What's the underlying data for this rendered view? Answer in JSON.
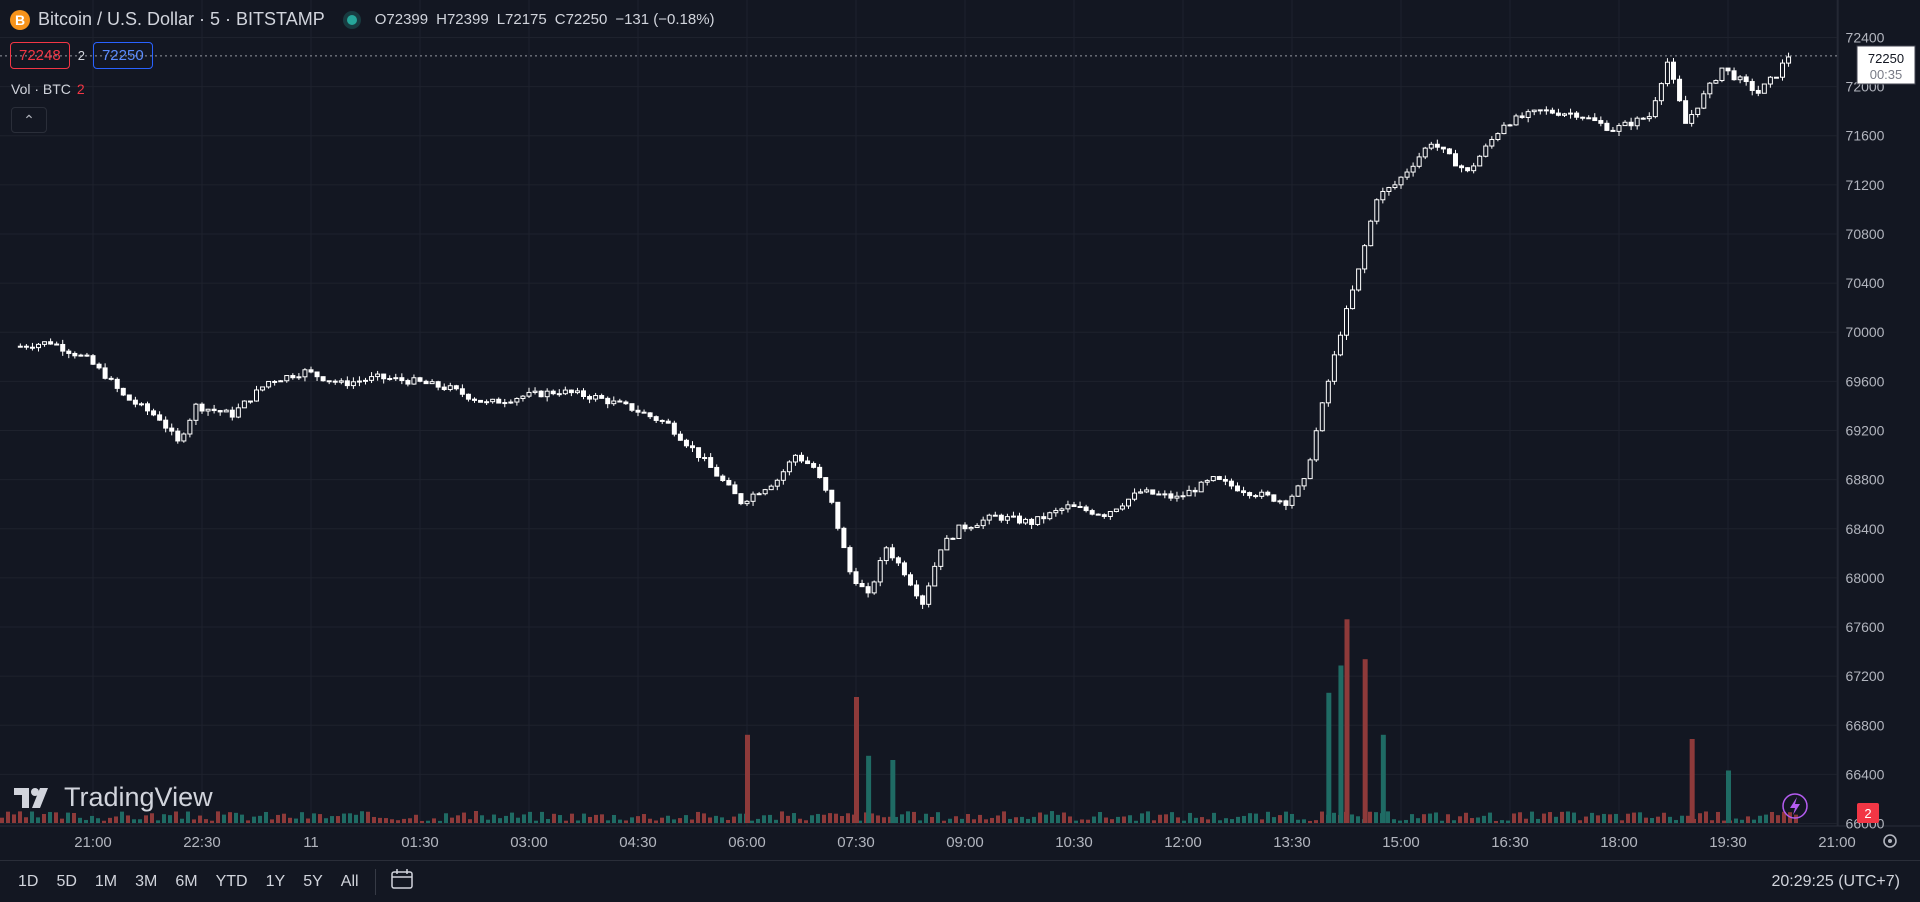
{
  "legend": {
    "coin_icon": "B",
    "title": "Bitcoin / U.S. Dollar · 5 · BITSTAMP",
    "ohlc": {
      "o_label": "O",
      "o": "72399",
      "h_label": "H",
      "h": "72399",
      "l_label": "L",
      "l": "72175",
      "c_label": "C",
      "c": "72250",
      "change": "−131 (−0.18%)"
    }
  },
  "quote": {
    "bid": "72248",
    "spread": "2",
    "ask": "72250"
  },
  "volume_label": {
    "text": "Vol · BTC",
    "value": "2"
  },
  "logo": {
    "text": "TradingView"
  },
  "price_label": {
    "price": "72250",
    "countdown": "00:35"
  },
  "volume_badge": "2",
  "toolbar": {
    "ranges": [
      "1D",
      "5D",
      "1M",
      "3M",
      "6M",
      "YTD",
      "1Y",
      "5Y",
      "All"
    ],
    "clock": "20:29:25 (UTC+7)"
  },
  "colors": {
    "background": "#131722",
    "grid": "#1e222d",
    "up": "#ffffff",
    "down": "#ffffff",
    "vol_up": "#1f6b64",
    "vol_down": "#8e3a3a",
    "bid": "#f23645",
    "ask": "#2962ff"
  },
  "chart_data": {
    "type": "candlestick",
    "symbol": "Bitcoin / U.S. Dollar",
    "interval": "5",
    "exchange": "BITSTAMP",
    "y_ticks": [
      72400,
      72000,
      71600,
      71200,
      70800,
      70400,
      70000,
      69600,
      69200,
      68800,
      68400,
      68000,
      67600,
      67200,
      66800,
      66400,
      66000
    ],
    "ylim": [
      65980,
      72420
    ],
    "x_ticks": [
      "21:00",
      "22:30",
      "11",
      "01:30",
      "03:00",
      "04:30",
      "06:00",
      "07:30",
      "09:00",
      "10:30",
      "12:00",
      "13:30",
      "15:00",
      "16:30",
      "18:00",
      "19:30",
      "21:00"
    ],
    "series": [
      {
        "t": "20:00",
        "close": 69880
      },
      {
        "t": "20:30",
        "close": 69920
      },
      {
        "t": "21:00",
        "close": 69780
      },
      {
        "t": "21:15",
        "close": 69650
      },
      {
        "t": "21:30",
        "close": 69480
      },
      {
        "t": "22:00",
        "close": 69300
      },
      {
        "t": "22:15",
        "close": 69100
      },
      {
        "t": "22:30",
        "close": 69400
      },
      {
        "t": "23:00",
        "close": 69330
      },
      {
        "t": "23:30",
        "close": 69600
      },
      {
        "t": "00:00",
        "close": 69680
      },
      {
        "t": "00:30",
        "close": 69580
      },
      {
        "t": "01:00",
        "close": 69630
      },
      {
        "t": "01:30",
        "close": 69600
      },
      {
        "t": "02:00",
        "close": 69540
      },
      {
        "t": "02:30",
        "close": 69420
      },
      {
        "t": "03:00",
        "close": 69480
      },
      {
        "t": "03:30",
        "close": 69520
      },
      {
        "t": "04:00",
        "close": 69470
      },
      {
        "t": "04:30",
        "close": 69380
      },
      {
        "t": "05:00",
        "close": 69250
      },
      {
        "t": "05:30",
        "close": 68950
      },
      {
        "t": "06:00",
        "close": 68620
      },
      {
        "t": "06:30",
        "close": 68800
      },
      {
        "t": "06:45",
        "close": 69000
      },
      {
        "t": "07:00",
        "close": 68900
      },
      {
        "t": "07:15",
        "close": 68600
      },
      {
        "t": "07:30",
        "close": 68050
      },
      {
        "t": "07:45",
        "close": 67850
      },
      {
        "t": "08:00",
        "close": 68250
      },
      {
        "t": "08:15",
        "close": 68050
      },
      {
        "t": "08:30",
        "close": 67800
      },
      {
        "t": "08:45",
        "close": 68250
      },
      {
        "t": "09:00",
        "close": 68400
      },
      {
        "t": "09:30",
        "close": 68500
      },
      {
        "t": "10:00",
        "close": 68450
      },
      {
        "t": "10:30",
        "close": 68580
      },
      {
        "t": "11:00",
        "close": 68520
      },
      {
        "t": "11:30",
        "close": 68700
      },
      {
        "t": "12:00",
        "close": 68650
      },
      {
        "t": "12:30",
        "close": 68800
      },
      {
        "t": "13:00",
        "close": 68700
      },
      {
        "t": "13:30",
        "close": 68620
      },
      {
        "t": "13:45",
        "close": 68780
      },
      {
        "t": "14:00",
        "close": 69400
      },
      {
        "t": "14:15",
        "close": 70000
      },
      {
        "t": "14:30",
        "close": 70500
      },
      {
        "t": "14:45",
        "close": 71100
      },
      {
        "t": "15:00",
        "close": 71200
      },
      {
        "t": "15:30",
        "close": 71550
      },
      {
        "t": "16:00",
        "close": 71300
      },
      {
        "t": "16:30",
        "close": 71700
      },
      {
        "t": "17:00",
        "close": 71800
      },
      {
        "t": "17:30",
        "close": 71780
      },
      {
        "t": "18:00",
        "close": 71650
      },
      {
        "t": "18:30",
        "close": 71760
      },
      {
        "t": "18:45",
        "close": 72200
      },
      {
        "t": "19:00",
        "close": 71700
      },
      {
        "t": "19:30",
        "close": 72150
      },
      {
        "t": "20:00",
        "close": 71950
      },
      {
        "t": "20:15",
        "close": 72100
      },
      {
        "t": "20:25",
        "close": 72250
      }
    ],
    "volume_peaks": [
      {
        "t": "06:00",
        "dir": "down",
        "level": 0.42
      },
      {
        "t": "07:30",
        "dir": "down",
        "level": 0.6
      },
      {
        "t": "07:40",
        "dir": "up",
        "level": 0.32
      },
      {
        "t": "08:00",
        "dir": "up",
        "level": 0.3
      },
      {
        "t": "14:00",
        "dir": "up",
        "level": 0.62
      },
      {
        "t": "14:10",
        "dir": "up",
        "level": 0.75
      },
      {
        "t": "14:15",
        "dir": "down",
        "level": 0.97
      },
      {
        "t": "14:30",
        "dir": "down",
        "level": 0.78
      },
      {
        "t": "14:45",
        "dir": "up",
        "level": 0.42
      },
      {
        "t": "19:00",
        "dir": "down",
        "level": 0.4
      },
      {
        "t": "19:30",
        "dir": "up",
        "level": 0.25
      }
    ]
  }
}
